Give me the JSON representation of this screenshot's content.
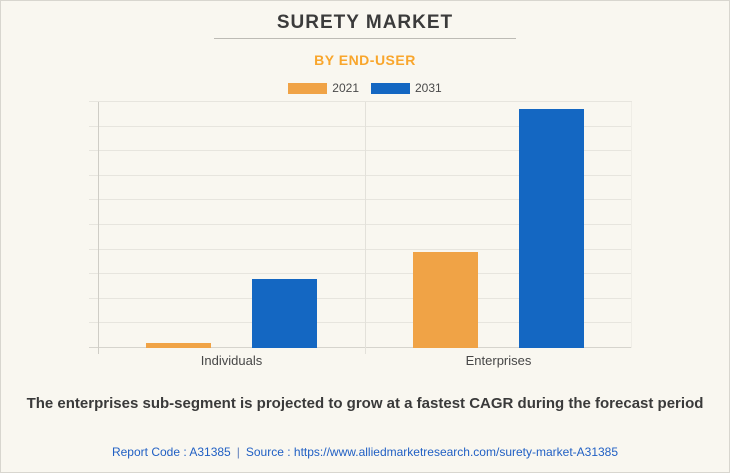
{
  "page": {
    "title": "SURETY MARKET",
    "subtitle": "BY END-USER"
  },
  "colors": {
    "background": "#F9F7F0",
    "series_2021_orange": "#F0A346",
    "series_2031_blue": "#1467C2",
    "subtitle_orange": "#F9A62C",
    "link_blue": "#2160C4",
    "title_text": "#3B3B3B"
  },
  "legend": [
    {
      "label": "2021",
      "color": "#F0A346"
    },
    {
      "label": "2031",
      "color": "#1467C2"
    }
  ],
  "chart_data": {
    "type": "bar",
    "title": "SURETY MARKET",
    "subtitle": "BY END-USER",
    "categories": [
      "Individuals",
      "Enterprises"
    ],
    "series": [
      {
        "name": "2021",
        "color": "#F0A346",
        "values": [
          2,
          39
        ]
      },
      {
        "name": "2031",
        "color": "#1467C2",
        "values": [
          28,
          97
        ]
      }
    ],
    "ylim": [
      0,
      100
    ],
    "gridline_step": 10,
    "grid": "horizontal",
    "value_axis_labels": false,
    "legend_position": "top"
  },
  "footer": {
    "insight": "The enterprises sub-segment is projected to grow at a fastest CAGR during the forecast period",
    "report_code": "Report Code : A31385",
    "separator": "|",
    "source_prefix": "Source :",
    "source_url": "https://www.alliedmarketresearch.com/surety-market-A31385"
  }
}
